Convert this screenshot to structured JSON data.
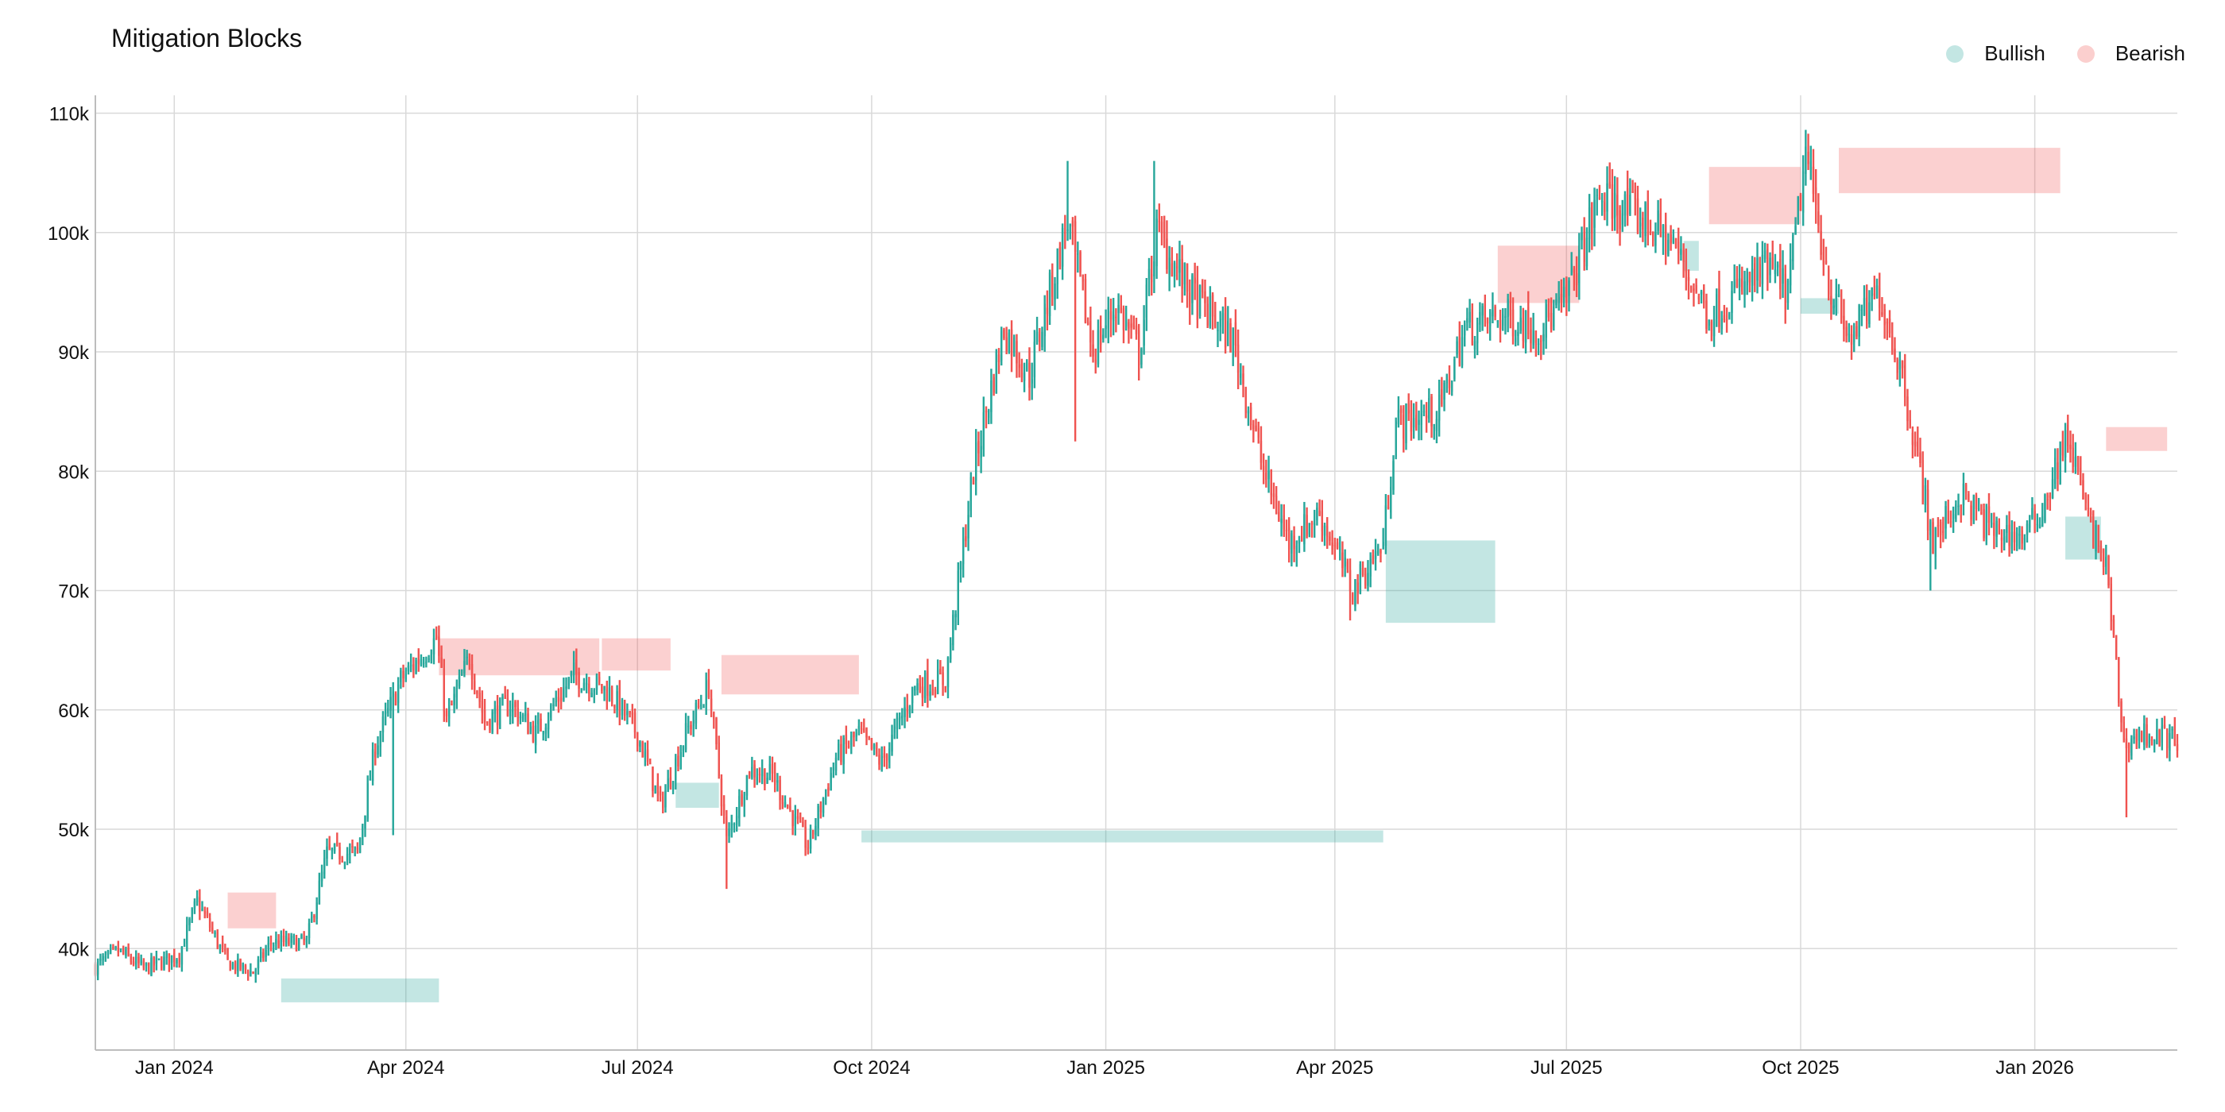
{
  "title": "Mitigation Blocks",
  "legend": [
    {
      "label": "Bullish",
      "color": "#26a69a"
    },
    {
      "label": "Bearish",
      "color": "#ef5350"
    }
  ],
  "colors": {
    "up": "#26a69a",
    "down": "#ef5350",
    "bullish_zone": "#26a69a",
    "bearish_zone": "#ef5350",
    "grid": "#d9d9d9"
  },
  "chart_data": {
    "type": "candlestick",
    "title": "Mitigation Blocks",
    "xlabel": "",
    "ylabel": "",
    "x_range": [
      "2023-12-01",
      "2026-02-26"
    ],
    "ylim": [
      31500,
      111500
    ],
    "grid": true,
    "legend_position": "top-right",
    "x_ticks": [
      {
        "date": "2024-01-01",
        "label": "Jan 2024"
      },
      {
        "date": "2024-04-01",
        "label": "Apr 2024"
      },
      {
        "date": "2024-07-01",
        "label": "Jul 2024"
      },
      {
        "date": "2024-10-01",
        "label": "Oct 2024"
      },
      {
        "date": "2025-01-01",
        "label": "Jan 2025"
      },
      {
        "date": "2025-04-01",
        "label": "Apr 2025"
      },
      {
        "date": "2025-07-01",
        "label": "Jul 2025"
      },
      {
        "date": "2025-10-01",
        "label": "Oct 2025"
      },
      {
        "date": "2026-01-01",
        "label": "Jan 2026"
      }
    ],
    "y_ticks": [
      {
        "value": 40000,
        "label": "40k"
      },
      {
        "value": 50000,
        "label": "50k"
      },
      {
        "value": 60000,
        "label": "60k"
      },
      {
        "value": 70000,
        "label": "70k"
      },
      {
        "value": 80000,
        "label": "80k"
      },
      {
        "value": 90000,
        "label": "90k"
      },
      {
        "value": 100000,
        "label": "100k"
      },
      {
        "value": 110000,
        "label": "110k"
      }
    ],
    "price_path": [
      [
        "2023-12-01",
        38500
      ],
      [
        "2023-12-10",
        39800
      ],
      [
        "2023-12-20",
        38300
      ],
      [
        "2024-01-03",
        39500
      ],
      [
        "2024-01-10",
        44000
      ],
      [
        "2024-01-22",
        38800
      ],
      [
        "2024-02-01",
        38000
      ],
      [
        "2024-02-08",
        40500
      ],
      [
        "2024-02-22",
        40500
      ],
      [
        "2024-03-01",
        48000
      ],
      [
        "2024-03-13",
        48000
      ],
      [
        "2024-03-20",
        57000
      ],
      [
        "2024-03-30",
        62500
      ],
      [
        "2024-04-13",
        66000
      ],
      [
        "2024-04-17",
        59000
      ],
      [
        "2024-04-26",
        64500
      ],
      [
        "2024-05-02",
        59000
      ],
      [
        "2024-05-12",
        60500
      ],
      [
        "2024-05-22",
        58000
      ],
      [
        "2024-06-06",
        63000
      ],
      [
        "2024-06-20",
        61500
      ],
      [
        "2024-07-01",
        58000
      ],
      [
        "2024-07-10",
        52000
      ],
      [
        "2024-07-20",
        58000
      ],
      [
        "2024-07-29",
        62000
      ],
      [
        "2024-08-05",
        49000
      ],
      [
        "2024-08-14",
        55000
      ],
      [
        "2024-08-23",
        54500
      ],
      [
        "2024-09-06",
        48500
      ],
      [
        "2024-09-17",
        56000
      ],
      [
        "2024-09-26",
        58000
      ],
      [
        "2024-10-05",
        55500
      ],
      [
        "2024-10-18",
        62000
      ],
      [
        "2024-10-30",
        62500
      ],
      [
        "2024-11-10",
        80000
      ],
      [
        "2024-11-22",
        92000
      ],
      [
        "2024-12-02",
        88000
      ],
      [
        "2024-12-10",
        95000
      ],
      [
        "2024-12-17",
        101000
      ],
      [
        "2024-12-27",
        90000
      ],
      [
        "2025-01-05",
        94000
      ],
      [
        "2025-01-14",
        90000
      ],
      [
        "2025-01-21",
        100000
      ],
      [
        "2025-02-03",
        95000
      ],
      [
        "2025-02-20",
        91000
      ],
      [
        "2025-03-04",
        80000
      ],
      [
        "2025-03-14",
        74000
      ],
      [
        "2025-03-26",
        76500
      ],
      [
        "2025-04-08",
        70000
      ],
      [
        "2025-04-20",
        74000
      ],
      [
        "2025-04-25",
        84000
      ],
      [
        "2025-05-12",
        85000
      ],
      [
        "2025-05-22",
        92000
      ],
      [
        "2025-06-06",
        93000
      ],
      [
        "2025-06-20",
        92000
      ],
      [
        "2025-06-30",
        94000
      ],
      [
        "2025-07-14",
        103000
      ],
      [
        "2025-08-01",
        101000
      ],
      [
        "2025-08-12",
        99000
      ],
      [
        "2025-08-26",
        93000
      ],
      [
        "2025-09-06",
        95000
      ],
      [
        "2025-09-18",
        97000
      ],
      [
        "2025-09-26",
        95000
      ],
      [
        "2025-10-03",
        106500
      ],
      [
        "2025-10-13",
        95000
      ],
      [
        "2025-10-20",
        91000
      ],
      [
        "2025-11-01",
        95000
      ],
      [
        "2025-11-10",
        88000
      ],
      [
        "2025-11-22",
        74000
      ],
      [
        "2025-12-03",
        78000
      ],
      [
        "2025-12-15",
        75000
      ],
      [
        "2025-12-28",
        74500
      ],
      [
        "2026-01-04",
        77000
      ],
      [
        "2026-01-14",
        83000
      ],
      [
        "2026-01-22",
        76000
      ],
      [
        "2026-01-29",
        72000
      ],
      [
        "2026-02-05",
        57000
      ],
      [
        "2026-02-12",
        58000
      ],
      [
        "2026-02-26",
        57500
      ]
    ],
    "spikes": [
      [
        "2024-03-27",
        49500
      ],
      [
        "2024-08-05",
        45000
      ],
      [
        "2024-12-20",
        82500
      ],
      [
        "2025-04-07",
        67500
      ],
      [
        "2025-11-21",
        70000
      ],
      [
        "2026-02-06",
        51000
      ],
      [
        "2024-12-17",
        106000
      ],
      [
        "2025-01-20",
        106000
      ],
      [
        "2025-10-06",
        107000
      ]
    ],
    "zones": [
      {
        "type": "bearish",
        "start": "2024-01-22",
        "end": "2024-02-10",
        "low": 41700,
        "high": 44700
      },
      {
        "type": "bullish",
        "start": "2024-02-12",
        "end": "2024-04-14",
        "low": 35500,
        "high": 37500
      },
      {
        "type": "bearish",
        "start": "2024-04-14",
        "end": "2024-06-16",
        "low": 62900,
        "high": 66000
      },
      {
        "type": "bearish",
        "start": "2024-06-17",
        "end": "2024-07-14",
        "low": 63300,
        "high": 66000
      },
      {
        "type": "bullish",
        "start": "2024-07-16",
        "end": "2024-08-02",
        "low": 51800,
        "high": 53900
      },
      {
        "type": "bearish",
        "start": "2024-08-03",
        "end": "2024-09-26",
        "low": 61300,
        "high": 64600
      },
      {
        "type": "bullish",
        "start": "2024-09-27",
        "end": "2025-04-20",
        "low": 48900,
        "high": 49900
      },
      {
        "type": "bullish",
        "start": "2025-04-21",
        "end": "2025-06-03",
        "low": 67300,
        "high": 74200
      },
      {
        "type": "bearish",
        "start": "2025-06-04",
        "end": "2025-07-06",
        "low": 94100,
        "high": 98900
      },
      {
        "type": "bullish",
        "start": "2025-08-16",
        "end": "2025-08-22",
        "low": 96800,
        "high": 99300
      },
      {
        "type": "bearish",
        "start": "2025-08-26",
        "end": "2025-10-01",
        "low": 100700,
        "high": 105500
      },
      {
        "type": "bullish",
        "start": "2025-10-01",
        "end": "2025-10-16",
        "low": 93200,
        "high": 94500
      },
      {
        "type": "bearish",
        "start": "2025-10-16",
        "end": "2026-01-11",
        "low": 103300,
        "high": 107100
      },
      {
        "type": "bullish",
        "start": "2026-01-13",
        "end": "2026-01-27",
        "low": 72600,
        "high": 76200
      },
      {
        "type": "bearish",
        "start": "2026-01-29",
        "end": "2026-02-22",
        "low": 81700,
        "high": 83700
      }
    ]
  }
}
